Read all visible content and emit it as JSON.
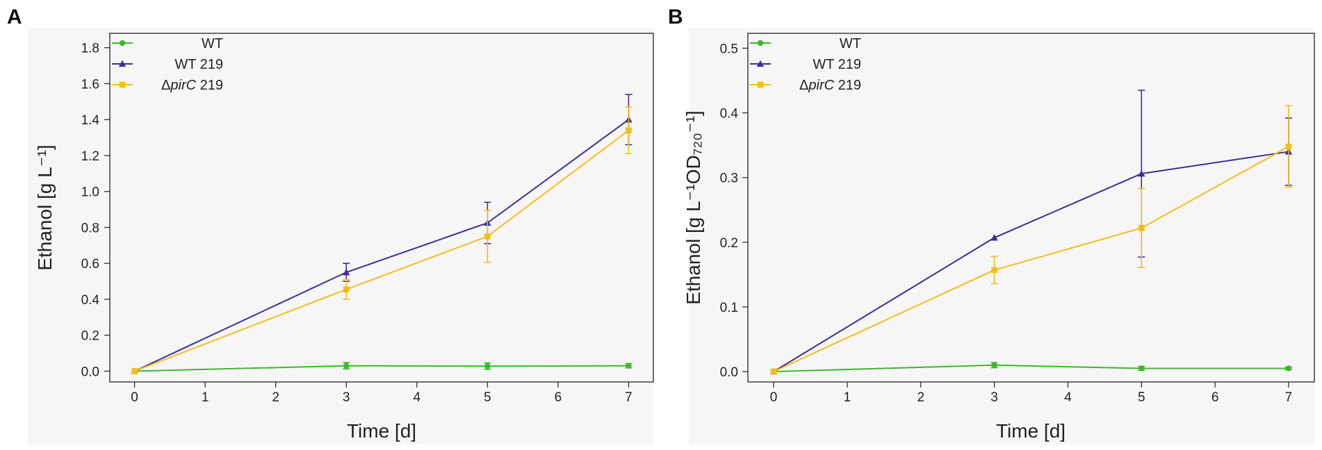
{
  "colors": {
    "WT": "#3db82b",
    "WT 219": "#3b2f98",
    "pirC 219": "#f5bd1a"
  },
  "chart_data": [
    {
      "panel": "A",
      "type": "line",
      "xlabel": "Time [d]",
      "ylabel": "Ethanol [g L⁻¹]",
      "xlim": [
        -0.35,
        7.35
      ],
      "ylim": [
        -0.06,
        1.88
      ],
      "xticks": [
        0,
        1,
        2,
        3,
        4,
        5,
        6,
        7
      ],
      "xtick_labels": [
        "0",
        "1",
        "2",
        "3",
        "4",
        "5",
        "6",
        "7"
      ],
      "yticks": [
        0.0,
        0.2,
        0.4,
        0.6,
        0.8,
        1.0,
        1.2,
        1.4,
        1.6,
        1.8
      ],
      "ytick_labels": [
        "0.0",
        "0.2",
        "0.4",
        "0.6",
        "0.8",
        "1.0",
        "1.2",
        "1.4",
        "1.6",
        "1.8"
      ],
      "legend": {
        "position": "top-left"
      },
      "series": [
        {
          "name": "WT",
          "prefix": "",
          "italic": "",
          "suffix": "WT",
          "marker": "circle",
          "color_key": "WT",
          "x": [
            0,
            3,
            5,
            7
          ],
          "y": [
            0.0,
            0.03,
            0.028,
            0.03
          ],
          "err": [
            0.0,
            0.018,
            0.018,
            0.012
          ]
        },
        {
          "name": "WT 219",
          "prefix": "",
          "italic": "",
          "suffix": "WT 219",
          "marker": "triangle",
          "color_key": "WT 219",
          "x": [
            0,
            3,
            5,
            7
          ],
          "y": [
            0.0,
            0.55,
            0.825,
            1.4
          ],
          "err": [
            0.0,
            0.05,
            0.115,
            0.14
          ]
        },
        {
          "name": "ΔpirC 219",
          "prefix": "Δ",
          "italic": "pirC",
          "suffix": " 219",
          "marker": "square",
          "color_key": "pirC 219",
          "x": [
            0,
            3,
            5,
            7
          ],
          "y": [
            0.0,
            0.455,
            0.75,
            1.34
          ],
          "err": [
            0.0,
            0.055,
            0.145,
            0.13
          ]
        }
      ]
    },
    {
      "panel": "B",
      "type": "line",
      "xlabel": "Time [d]",
      "ylabel": "Ethanol [g L⁻¹OD₇₂₀⁻¹]",
      "xlim": [
        -0.35,
        7.35
      ],
      "ylim": [
        -0.016,
        0.523
      ],
      "xticks": [
        0,
        1,
        2,
        3,
        4,
        5,
        6,
        7
      ],
      "xtick_labels": [
        "0",
        "1",
        "2",
        "3",
        "4",
        "5",
        "6",
        "7"
      ],
      "yticks": [
        0.0,
        0.1,
        0.2,
        0.3,
        0.4,
        0.5
      ],
      "ytick_labels": [
        "0.0",
        "0.1",
        "0.2",
        "0.3",
        "0.4",
        "0.5"
      ],
      "legend": {
        "position": "top-left"
      },
      "series": [
        {
          "name": "WT",
          "prefix": "",
          "italic": "",
          "suffix": "WT",
          "marker": "circle",
          "color_key": "WT",
          "x": [
            0,
            3,
            5,
            7
          ],
          "y": [
            0.0,
            0.01,
            0.005,
            0.005
          ],
          "err": [
            0.0,
            0.004,
            0.003,
            0.002
          ]
        },
        {
          "name": "WT 219",
          "prefix": "",
          "italic": "",
          "suffix": "WT 219",
          "marker": "triangle",
          "color_key": "WT 219",
          "x": [
            0,
            3,
            5,
            7
          ],
          "y": [
            0.0,
            0.207,
            0.306,
            0.34
          ],
          "err": [
            0.0,
            0.0,
            0.129,
            0.052
          ]
        },
        {
          "name": "ΔpirC 219",
          "prefix": "Δ",
          "italic": "pirC",
          "suffix": " 219",
          "marker": "square",
          "color_key": "pirC 219",
          "x": [
            0,
            3,
            5,
            7
          ],
          "y": [
            0.0,
            0.157,
            0.222,
            0.348
          ],
          "err": [
            0.0,
            0.021,
            0.061,
            0.063
          ]
        }
      ]
    }
  ]
}
